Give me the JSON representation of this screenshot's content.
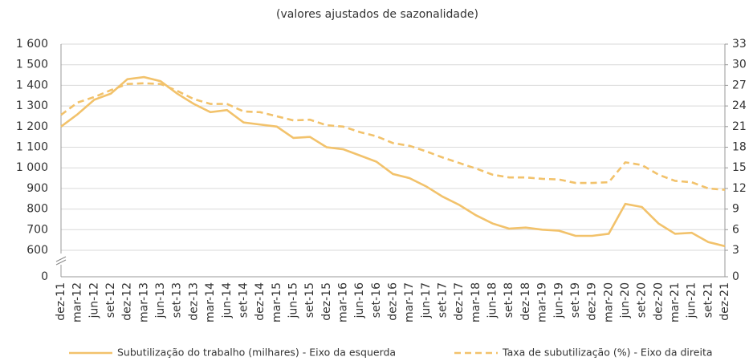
{
  "chart_data": {
    "type": "line",
    "title": "(valores ajustados de sazonalidade)",
    "categories": [
      "dez-11",
      "mar-12",
      "jun-12",
      "set-12",
      "dez-12",
      "mar-13",
      "jun-13",
      "set-13",
      "dez-13",
      "mar-14",
      "jun-14",
      "set-14",
      "dez-14",
      "mar-15",
      "jun-15",
      "set-15",
      "dez-15",
      "mar-16",
      "jun-16",
      "set-16",
      "dez-16",
      "mar-17",
      "jun-17",
      "set-17",
      "dez-17",
      "mar-18",
      "jun-18",
      "set-18",
      "dez-18",
      "mar-19",
      "jun-19",
      "set-19",
      "dez-19",
      "mar-20",
      "jun-20",
      "set-20",
      "dez-20",
      "mar-21",
      "jun-21",
      "set-21",
      "dez-21"
    ],
    "series": [
      {
        "name": "Subutilização do trabalho (milhares) - Eixo da esquerda",
        "color": "#f2c26b",
        "dash": false,
        "values": [
          1200,
          1260,
          1330,
          1360,
          1430,
          1440,
          1420,
          1360,
          1310,
          1270,
          1280,
          1220,
          1210,
          1200,
          1145,
          1150,
          1100,
          1090,
          1060,
          1030,
          970,
          950,
          910,
          860,
          820,
          770,
          730,
          705,
          710,
          700,
          695,
          670,
          670,
          680,
          825,
          810,
          730,
          680,
          685,
          640,
          620
        ]
      },
      {
        "name": "Taxa de subutilização (%) - Eixo da direita",
        "color": "#f2c26b",
        "dash": true,
        "axis": "y2",
        "values": [
          22.7,
          24.5,
          25.3,
          26.3,
          27.2,
          27.3,
          27.2,
          26.2,
          25.0,
          24.3,
          24.3,
          23.2,
          23.1,
          22.5,
          21.9,
          22.0,
          21.2,
          21.0,
          20.2,
          19.6,
          18.6,
          18.2,
          17.4,
          16.5,
          15.7,
          14.9,
          14.0,
          13.6,
          13.6,
          13.4,
          13.3,
          12.8,
          12.8,
          12.9,
          15.8,
          15.4,
          14.0,
          13.1,
          12.9,
          12.0,
          11.8
        ]
      }
    ],
    "ylim": [
      0,
      1600
    ],
    "y_break": [
      0,
      600
    ],
    "yticks": [
      0,
      600,
      700,
      800,
      900,
      {
        "value": 1000,
        "label": "1 000"
      },
      {
        "value": 1100,
        "label": "1 100"
      },
      {
        "value": 1200,
        "label": "1 200"
      },
      {
        "value": 1300,
        "label": "1 300"
      },
      {
        "value": 1400,
        "label": "1 400"
      },
      {
        "value": 1500,
        "label": "1 500"
      },
      {
        "value": 1600,
        "label": "1 600"
      }
    ],
    "y2lim": [
      0,
      33
    ],
    "y2_break": [
      0,
      3
    ],
    "y2ticks": [
      0,
      3,
      6,
      9,
      12,
      15,
      18,
      21,
      24,
      27,
      30,
      33
    ],
    "grid": true
  }
}
